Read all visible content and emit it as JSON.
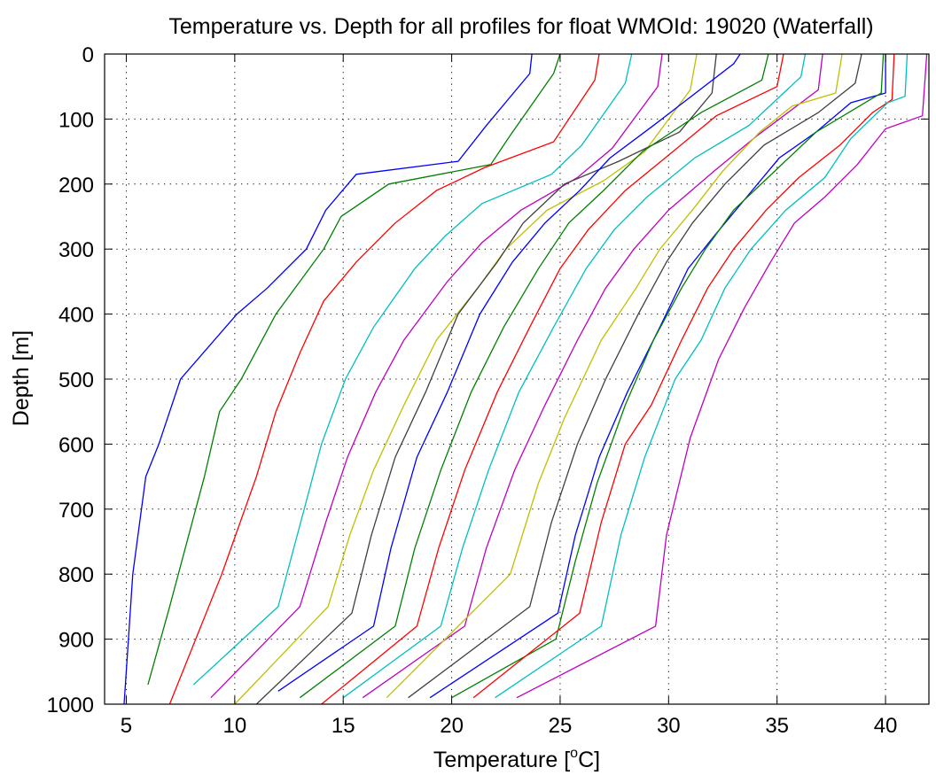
{
  "chart_data": {
    "type": "line",
    "title": "Temperature vs. Depth for all profiles for float WMOId: 19020 (Waterfall)",
    "xlabel_main": "Temperature [",
    "xlabel_sup": "o",
    "xlabel_tail": "C]",
    "ylabel": "Depth [m]",
    "xlim": [
      4,
      42
    ],
    "ylim": [
      0,
      1000
    ],
    "y_reversed": true,
    "grid": true,
    "xticks": [
      5,
      10,
      15,
      20,
      25,
      30,
      35,
      40
    ],
    "yticks": [
      0,
      100,
      200,
      300,
      400,
      500,
      600,
      700,
      800,
      900,
      1000
    ],
    "colors": [
      "#0000ff",
      "#008000",
      "#ff0000",
      "#00bfbf",
      "#bf00bf",
      "#bfbf00",
      "#404040"
    ],
    "series": [
      {
        "color_index": 0,
        "depths": [
          0,
          30,
          110,
          165,
          185,
          240,
          300,
          360,
          400,
          500,
          600,
          650,
          800,
          1000
        ],
        "values": [
          23.7,
          23.6,
          21.6,
          20.3,
          15.6,
          14.2,
          13.3,
          11.5,
          10.1,
          7.5,
          6.5,
          5.9,
          5.3,
          4.9
        ]
      },
      {
        "color_index": 1,
        "depths": [
          0,
          30,
          125,
          170,
          200,
          250,
          300,
          400,
          500,
          550,
          650,
          850,
          970
        ],
        "values": [
          25.0,
          24.7,
          22.7,
          21.8,
          17.1,
          14.9,
          14.1,
          11.9,
          10.3,
          9.3,
          8.6,
          7.0,
          6.0
        ]
      },
      {
        "color_index": 2,
        "depths": [
          0,
          40,
          135,
          175,
          210,
          260,
          320,
          380,
          460,
          550,
          650,
          800,
          1000
        ],
        "values": [
          26.8,
          26.6,
          24.7,
          21.5,
          19.3,
          17.4,
          15.6,
          14.1,
          13.0,
          11.9,
          11.0,
          9.4,
          7.0
        ]
      },
      {
        "color_index": 3,
        "depths": [
          0,
          45,
          140,
          185,
          230,
          280,
          330,
          420,
          500,
          600,
          700,
          850,
          970
        ],
        "values": [
          28.3,
          28.0,
          26.0,
          24.6,
          21.4,
          19.7,
          18.3,
          16.4,
          15.1,
          14.0,
          13.2,
          12.0,
          8.1
        ]
      },
      {
        "color_index": 4,
        "depths": [
          0,
          50,
          145,
          190,
          240,
          290,
          350,
          440,
          520,
          620,
          720,
          850,
          990
        ],
        "values": [
          29.7,
          29.5,
          27.4,
          25.8,
          23.2,
          21.4,
          19.8,
          17.8,
          16.5,
          15.2,
          14.2,
          13.0,
          8.9
        ]
      },
      {
        "color_index": 5,
        "depths": [
          0,
          55,
          150,
          195,
          240,
          300,
          360,
          440,
          540,
          640,
          740,
          850,
          1000
        ],
        "values": [
          31.3,
          31.0,
          28.9,
          27.0,
          24.4,
          22.5,
          21.2,
          19.3,
          17.8,
          16.4,
          15.3,
          14.3,
          10.0
        ]
      },
      {
        "color_index": 6,
        "depths": [
          0,
          60,
          120,
          165,
          200,
          260,
          320,
          400,
          520,
          620,
          740,
          860,
          1000
        ],
        "values": [
          32.2,
          32.0,
          30.5,
          27.7,
          25.2,
          23.3,
          22.1,
          20.3,
          18.8,
          17.4,
          16.3,
          15.4,
          11.0
        ]
      },
      {
        "color_index": 0,
        "depths": [
          0,
          15,
          110,
          160,
          210,
          260,
          320,
          400,
          520,
          620,
          760,
          880,
          980
        ],
        "values": [
          33.3,
          33.0,
          29.3,
          27.3,
          25.9,
          24.3,
          22.8,
          21.3,
          19.8,
          18.4,
          17.2,
          16.4,
          12.0
        ]
      },
      {
        "color_index": 1,
        "depths": [
          0,
          40,
          90,
          150,
          210,
          260,
          330,
          420,
          520,
          640,
          760,
          880,
          990
        ],
        "values": [
          34.6,
          34.3,
          31.5,
          28.8,
          27.0,
          25.4,
          24.0,
          22.4,
          20.9,
          19.5,
          18.3,
          17.4,
          13.0
        ]
      },
      {
        "color_index": 2,
        "depths": [
          0,
          50,
          95,
          150,
          210,
          270,
          330,
          420,
          520,
          640,
          760,
          880,
          1000
        ],
        "values": [
          35.3,
          35.0,
          32.2,
          30.2,
          28.0,
          26.3,
          25.0,
          23.6,
          22.1,
          20.6,
          19.4,
          18.4,
          14.0
        ]
      },
      {
        "color_index": 3,
        "depths": [
          0,
          35,
          110,
          160,
          220,
          270,
          330,
          420,
          520,
          640,
          760,
          880,
          990
        ],
        "values": [
          36.3,
          36.1,
          33.7,
          31.2,
          29.0,
          27.5,
          26.2,
          24.7,
          23.1,
          21.7,
          20.5,
          19.5,
          15.0
        ]
      },
      {
        "color_index": 4,
        "depths": [
          0,
          55,
          125,
          180,
          240,
          300,
          360,
          440,
          540,
          640,
          760,
          880,
          990
        ],
        "values": [
          37.1,
          36.9,
          34.1,
          32.1,
          30.0,
          28.4,
          27.1,
          25.8,
          24.3,
          22.9,
          21.6,
          20.6,
          15.9
        ]
      },
      {
        "color_index": 5,
        "depths": [
          0,
          60,
          80,
          120,
          180,
          240,
          300,
          360,
          440,
          560,
          660,
          800,
          990
        ],
        "values": [
          38.0,
          37.7,
          35.7,
          34.2,
          32.5,
          31.1,
          29.6,
          28.5,
          26.9,
          25.2,
          24.0,
          22.7,
          17.0
        ]
      },
      {
        "color_index": 6,
        "depths": [
          0,
          45,
          90,
          140,
          200,
          260,
          320,
          400,
          500,
          600,
          720,
          850,
          990
        ],
        "values": [
          38.9,
          38.6,
          36.9,
          34.4,
          32.6,
          31.1,
          29.9,
          28.6,
          27.1,
          25.8,
          24.6,
          23.6,
          18.0
        ]
      },
      {
        "color_index": 0,
        "depths": [
          0,
          60,
          75,
          120,
          160,
          220,
          280,
          330,
          420,
          520,
          620,
          740,
          860,
          990
        ],
        "values": [
          40.0,
          40.0,
          38.4,
          36.8,
          35.1,
          33.6,
          32.1,
          30.9,
          29.6,
          28.1,
          26.8,
          25.7,
          24.9,
          19.0
        ]
      },
      {
        "color_index": 1,
        "depths": [
          0,
          60,
          80,
          120,
          180,
          240,
          300,
          360,
          440,
          540,
          660,
          780,
          900,
          990
        ],
        "values": [
          39.9,
          39.8,
          38.8,
          36.8,
          34.9,
          33.0,
          31.7,
          30.6,
          29.3,
          28.0,
          26.7,
          25.7,
          24.8,
          20.0
        ]
      },
      {
        "color_index": 2,
        "depths": [
          0,
          70,
          90,
          140,
          190,
          240,
          300,
          360,
          440,
          540,
          600,
          720,
          860,
          990
        ],
        "values": [
          40.4,
          40.3,
          39.4,
          37.9,
          36.0,
          34.5,
          33.0,
          31.8,
          30.6,
          29.2,
          28.0,
          26.9,
          25.9,
          21.0
        ]
      },
      {
        "color_index": 3,
        "depths": [
          0,
          65,
          75,
          130,
          190,
          240,
          300,
          360,
          440,
          500,
          620,
          740,
          880,
          990
        ],
        "values": [
          41.0,
          40.9,
          40.1,
          38.4,
          37.2,
          35.4,
          33.8,
          32.6,
          31.5,
          30.3,
          28.9,
          27.8,
          26.9,
          22.0
        ]
      },
      {
        "color_index": 4,
        "depths": [
          0,
          95,
          115,
          170,
          220,
          260,
          320,
          390,
          470,
          590,
          740,
          880,
          990
        ],
        "values": [
          41.9,
          41.7,
          40.0,
          38.7,
          37.2,
          35.8,
          34.7,
          33.5,
          32.3,
          31.0,
          29.9,
          29.4,
          23.0
        ]
      }
    ]
  }
}
